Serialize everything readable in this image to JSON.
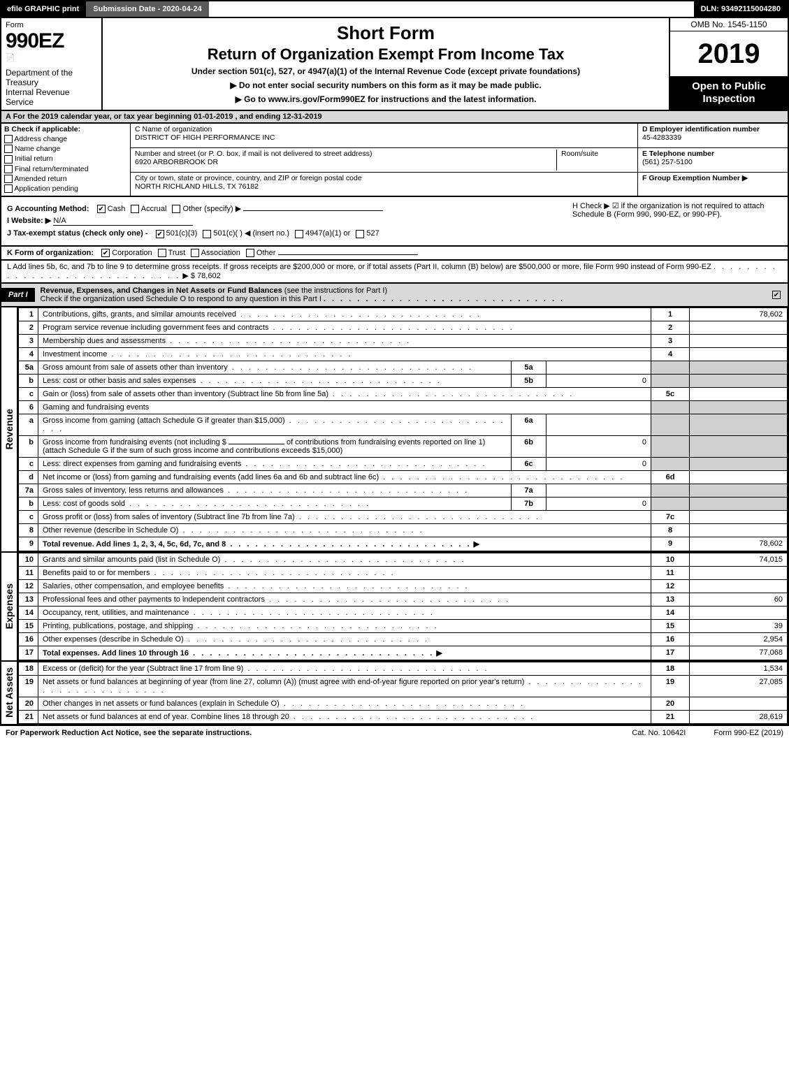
{
  "top": {
    "efile": "efile GRAPHIC print",
    "submission": "Submission Date - 2020-04-24",
    "dln": "DLN: 93492115004280"
  },
  "header": {
    "form_word": "Form",
    "form_number": "990EZ",
    "dept": "Department of the Treasury",
    "irs": "Internal Revenue Service",
    "short_form": "Short Form",
    "return_title": "Return of Organization Exempt From Income Tax",
    "under_section": "Under section 501(c), 527, or 4947(a)(1) of the Internal Revenue Code (except private foundations)",
    "do_not_enter": "▶ Do not enter social security numbers on this form as it may be made public.",
    "go_to": "▶ Go to www.irs.gov/Form990EZ for instructions and the latest information.",
    "omb": "OMB No. 1545-1150",
    "year": "2019",
    "open_public": "Open to Public Inspection"
  },
  "section_a": "A For the 2019 calendar year, or tax year beginning 01-01-2019 , and ending 12-31-2019",
  "b": {
    "heading": "B Check if applicable:",
    "opts": [
      "Address change",
      "Name change",
      "Initial return",
      "Final return/terminated",
      "Amended return",
      "Application pending"
    ]
  },
  "c": {
    "name_label": "C Name of organization",
    "name": "DISTRICT OF HIGH PERFORMANCE INC",
    "street_label": "Number and street (or P. O. box, if mail is not delivered to street address)",
    "street": "6920 ARBORBROOK DR",
    "room_label": "Room/suite",
    "room": "",
    "city_label": "City or town, state or province, country, and ZIP or foreign postal code",
    "city": "NORTH RICHLAND HILLS, TX  76182"
  },
  "d": {
    "ein_label": "D Employer identification number",
    "ein": "45-4283339",
    "phone_label": "E Telephone number",
    "phone": "(561) 257-5100",
    "group_label": "F Group Exemption Number ▶",
    "group": ""
  },
  "g": {
    "accounting_label": "G Accounting Method:",
    "accounting_opts": [
      "Cash",
      "Accrual",
      "Other (specify) ▶"
    ],
    "accounting_checked": 0,
    "website_label": "I Website: ▶",
    "website": "N/A",
    "tax_exempt_label": "J Tax-exempt status (check only one) -",
    "tax_opts": [
      "501(c)(3)",
      "501(c)(  ) ◀ (insert no.)",
      "4947(a)(1) or",
      "527"
    ],
    "tax_checked": 0
  },
  "h": {
    "text": "H Check ▶ ☑ if the organization is not required to attach Schedule B (Form 990, 990-EZ, or 990-PF)."
  },
  "k": {
    "label": "K Form of organization:",
    "opts": [
      "Corporation",
      "Trust",
      "Association",
      "Other"
    ],
    "checked": 0
  },
  "l": {
    "text": "L Add lines 5b, 6c, and 7b to line 9 to determine gross receipts. If gross receipts are $200,000 or more, or if total assets (Part II, column (B) below) are $500,000 or more, file Form 990 instead of Form 990-EZ",
    "amount": "▶ $ 78,602"
  },
  "part1": {
    "tag": "Part I",
    "title": "Revenue, Expenses, and Changes in Net Assets or Fund Balances",
    "sub": "(see the instructions for Part I)",
    "check_line": "Check if the organization used Schedule O to respond to any question in this Part I"
  },
  "revenue_rows": [
    {
      "ln": "1",
      "desc": "Contributions, gifts, grants, and similar amounts received",
      "num": "1",
      "amt": "78,602"
    },
    {
      "ln": "2",
      "desc": "Program service revenue including government fees and contracts",
      "num": "2",
      "amt": ""
    },
    {
      "ln": "3",
      "desc": "Membership dues and assessments",
      "num": "3",
      "amt": ""
    },
    {
      "ln": "4",
      "desc": "Investment income",
      "num": "4",
      "amt": ""
    }
  ],
  "rev5": {
    "a": {
      "ln": "5a",
      "desc": "Gross amount from sale of assets other than inventory",
      "box": "5a",
      "val": ""
    },
    "b": {
      "ln": "b",
      "desc": "Less: cost or other basis and sales expenses",
      "box": "5b",
      "val": "0"
    },
    "c": {
      "ln": "c",
      "desc": "Gain or (loss) from sale of assets other than inventory (Subtract line 5b from line 5a)",
      "num": "5c",
      "amt": ""
    }
  },
  "rev6": {
    "header": {
      "ln": "6",
      "desc": "Gaming and fundraising events"
    },
    "a": {
      "ln": "a",
      "desc": "Gross income from gaming (attach Schedule G if greater than $15,000)",
      "box": "6a",
      "val": ""
    },
    "b": {
      "ln": "b",
      "desc1": "Gross income from fundraising events (not including $",
      "desc2": "of contributions from fundraising events reported on line 1) (attach Schedule G if the sum of such gross income and contributions exceeds $15,000)",
      "box": "6b",
      "val": "0",
      "blank": ""
    },
    "c": {
      "ln": "c",
      "desc": "Less: direct expenses from gaming and fundraising events",
      "box": "6c",
      "val": "0"
    },
    "d": {
      "ln": "d",
      "desc": "Net income or (loss) from gaming and fundraising events (add lines 6a and 6b and subtract line 6c)",
      "num": "6d",
      "amt": ""
    }
  },
  "rev7": {
    "a": {
      "ln": "7a",
      "desc": "Gross sales of inventory, less returns and allowances",
      "box": "7a",
      "val": ""
    },
    "b": {
      "ln": "b",
      "desc": "Less: cost of goods sold",
      "box": "7b",
      "val": "0"
    },
    "c": {
      "ln": "c",
      "desc": "Gross profit or (loss) from sales of inventory (Subtract line 7b from line 7a)",
      "num": "7c",
      "amt": ""
    }
  },
  "rev8": {
    "ln": "8",
    "desc": "Other revenue (describe in Schedule O)",
    "num": "8",
    "amt": ""
  },
  "rev9": {
    "ln": "9",
    "desc": "Total revenue. Add lines 1, 2, 3, 4, 5c, 6d, 7c, and 8",
    "num": "9",
    "amt": "78,602",
    "bold": true
  },
  "expense_rows": [
    {
      "ln": "10",
      "desc": "Grants and similar amounts paid (list in Schedule O)",
      "num": "10",
      "amt": "74,015"
    },
    {
      "ln": "11",
      "desc": "Benefits paid to or for members",
      "num": "11",
      "amt": ""
    },
    {
      "ln": "12",
      "desc": "Salaries, other compensation, and employee benefits",
      "num": "12",
      "amt": ""
    },
    {
      "ln": "13",
      "desc": "Professional fees and other payments to independent contractors",
      "num": "13",
      "amt": "60"
    },
    {
      "ln": "14",
      "desc": "Occupancy, rent, utilities, and maintenance",
      "num": "14",
      "amt": ""
    },
    {
      "ln": "15",
      "desc": "Printing, publications, postage, and shipping",
      "num": "15",
      "amt": "39"
    },
    {
      "ln": "16",
      "desc": "Other expenses (describe in Schedule O)",
      "num": "16",
      "amt": "2,954"
    },
    {
      "ln": "17",
      "desc": "Total expenses. Add lines 10 through 16",
      "num": "17",
      "amt": "77,068",
      "bold": true
    }
  ],
  "netassets_rows": [
    {
      "ln": "18",
      "desc": "Excess or (deficit) for the year (Subtract line 17 from line 9)",
      "num": "18",
      "amt": "1,534"
    },
    {
      "ln": "19",
      "desc": "Net assets or fund balances at beginning of year (from line 27, column (A)) (must agree with end-of-year figure reported on prior year's return)",
      "num": "19",
      "amt": "27,085"
    },
    {
      "ln": "20",
      "desc": "Other changes in net assets or fund balances (explain in Schedule O)",
      "num": "20",
      "amt": ""
    },
    {
      "ln": "21",
      "desc": "Net assets or fund balances at end of year. Combine lines 18 through 20",
      "num": "21",
      "amt": "28,619"
    }
  ],
  "side_labels": {
    "revenue": "Revenue",
    "expenses": "Expenses",
    "netassets": "Net Assets"
  },
  "footer": {
    "paperwork": "For Paperwork Reduction Act Notice, see the separate instructions.",
    "cat": "Cat. No. 10642I",
    "form": "Form 990-EZ (2019)"
  }
}
